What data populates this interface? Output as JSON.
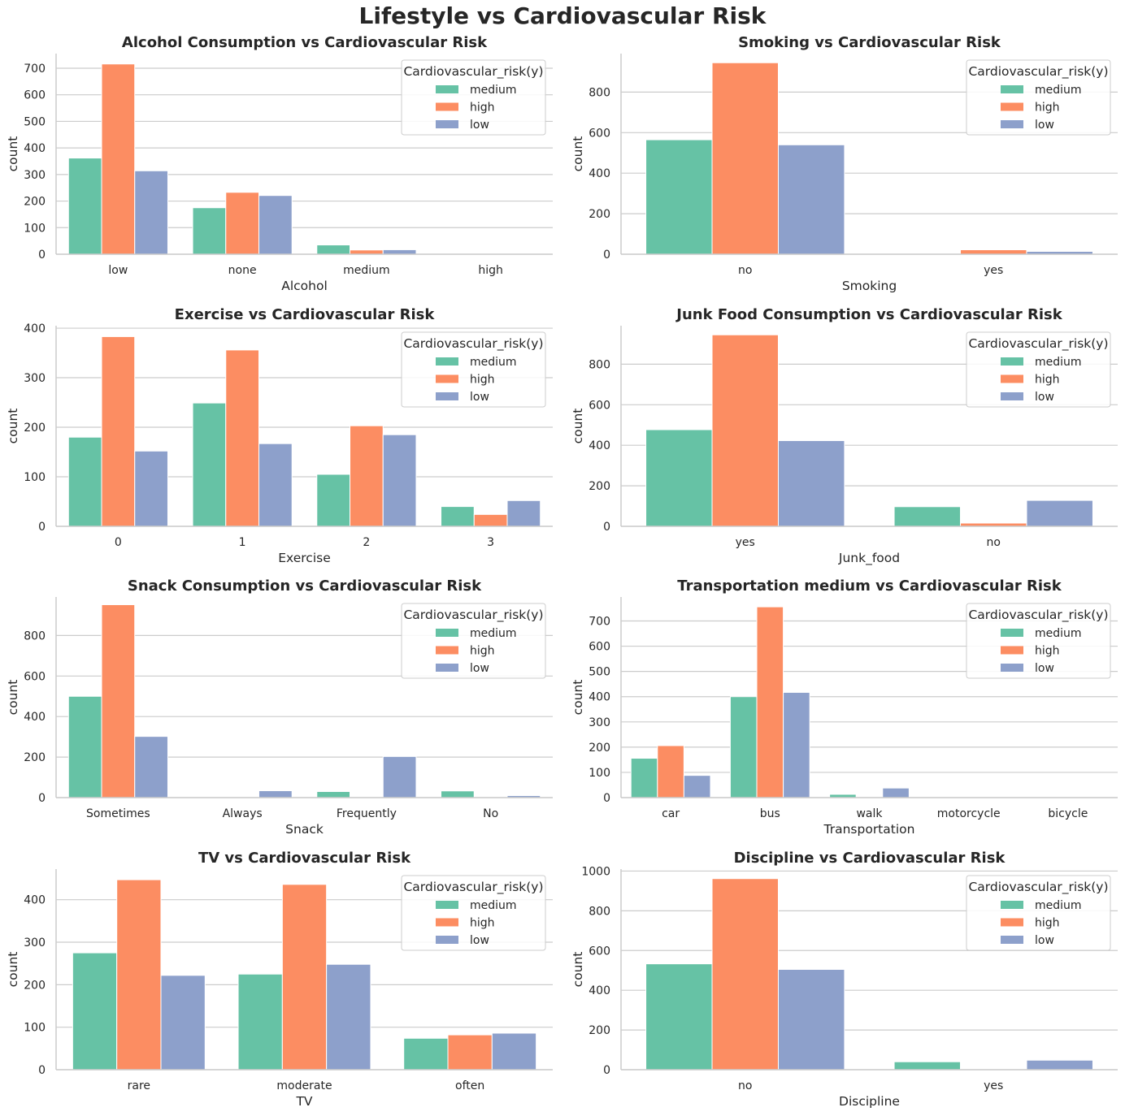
{
  "suptitle": "Lifestyle vs Cardiovascular Risk",
  "colors": {
    "medium": "#66c2a5",
    "high": "#fc8d62",
    "low": "#8da0cb"
  },
  "chart_data": [
    {
      "type": "bar",
      "title": "Alcohol Consumption vs Cardiovascular Risk",
      "xlabel": "Alcohol",
      "ylabel": "count",
      "categories": [
        "low",
        "none",
        "medium",
        "high"
      ],
      "ylim": [
        0,
        755
      ],
      "yticks": [
        0,
        100,
        200,
        300,
        400,
        500,
        600,
        700
      ],
      "legend": {
        "title": "Cardiovascular_risk(y)",
        "placement": "upper right"
      },
      "series": [
        {
          "name": "medium",
          "values": [
            362,
            175,
            35,
            0
          ]
        },
        {
          "name": "high",
          "values": [
            716,
            233,
            16,
            0
          ]
        },
        {
          "name": "low",
          "values": [
            314,
            221,
            17,
            0
          ]
        }
      ]
    },
    {
      "type": "bar",
      "title": "Smoking vs Cardiovascular Risk",
      "xlabel": "Smoking",
      "ylabel": "count",
      "categories": [
        "no",
        "yes"
      ],
      "ylim": [
        0,
        990
      ],
      "yticks": [
        0,
        200,
        400,
        600,
        800
      ],
      "legend": {
        "title": "Cardiovascular_risk(y)",
        "placement": "upper right"
      },
      "series": [
        {
          "name": "medium",
          "values": [
            565,
            0
          ]
        },
        {
          "name": "high",
          "values": [
            945,
            22
          ]
        },
        {
          "name": "low",
          "values": [
            540,
            14
          ]
        }
      ]
    },
    {
      "type": "bar",
      "title": "Exercise vs Cardiovascular Risk",
      "xlabel": "Exercise",
      "ylabel": "count",
      "categories": [
        "0",
        "1",
        "2",
        "3"
      ],
      "ylim": [
        0,
        405
      ],
      "yticks": [
        0,
        100,
        200,
        300,
        400
      ],
      "legend": {
        "title": "Cardiovascular_risk(y)",
        "placement": "upper right"
      },
      "series": [
        {
          "name": "medium",
          "values": [
            180,
            249,
            105,
            40
          ]
        },
        {
          "name": "high",
          "values": [
            383,
            356,
            203,
            24
          ]
        },
        {
          "name": "low",
          "values": [
            152,
            167,
            185,
            52
          ]
        }
      ]
    },
    {
      "type": "bar",
      "title": "Junk Food Consumption vs Cardiovascular Risk",
      "xlabel": "Junk_food",
      "ylabel": "count",
      "categories": [
        "yes",
        "no"
      ],
      "ylim": [
        0,
        990
      ],
      "yticks": [
        0,
        200,
        400,
        600,
        800
      ],
      "legend": {
        "title": "Cardiovascular_risk(y)",
        "placement": "upper right"
      },
      "series": [
        {
          "name": "medium",
          "values": [
            477,
            97
          ]
        },
        {
          "name": "high",
          "values": [
            945,
            16
          ]
        },
        {
          "name": "low",
          "values": [
            423,
            128
          ]
        }
      ]
    },
    {
      "type": "bar",
      "title": "Snack Consumption vs Cardiovascular Risk",
      "xlabel": "Snack",
      "ylabel": "count",
      "categories": [
        "Sometimes",
        "Always",
        "Frequently",
        "No"
      ],
      "ylim": [
        0,
        990
      ],
      "yticks": [
        0,
        200,
        400,
        600,
        800
      ],
      "legend": {
        "title": "Cardiovascular_risk(y)",
        "placement": "upper right"
      },
      "series": [
        {
          "name": "medium",
          "values": [
            500,
            0,
            30,
            33
          ]
        },
        {
          "name": "high",
          "values": [
            952,
            0,
            0,
            0
          ]
        },
        {
          "name": "low",
          "values": [
            302,
            34,
            203,
            10
          ]
        }
      ]
    },
    {
      "type": "bar",
      "title": "Transportation medium vs Cardiovascular Risk",
      "xlabel": "Transportation",
      "ylabel": "count",
      "categories": [
        "car",
        "bus",
        "walk",
        "motorcycle",
        "bicycle"
      ],
      "ylim": [
        0,
        795
      ],
      "yticks": [
        0,
        100,
        200,
        300,
        400,
        500,
        600,
        700
      ],
      "legend": {
        "title": "Cardiovascular_risk(y)",
        "placement": "upper right"
      },
      "series": [
        {
          "name": "medium",
          "values": [
            156,
            400,
            13,
            0,
            0
          ]
        },
        {
          "name": "high",
          "values": [
            206,
            756,
            0,
            0,
            0
          ]
        },
        {
          "name": "low",
          "values": [
            88,
            417,
            38,
            0,
            0
          ]
        }
      ]
    },
    {
      "type": "bar",
      "title": "TV vs Cardiovascular Risk",
      "xlabel": "TV",
      "ylabel": "count",
      "categories": [
        "rare",
        "moderate",
        "often"
      ],
      "ylim": [
        0,
        472
      ],
      "yticks": [
        0,
        100,
        200,
        300,
        400
      ],
      "legend": {
        "title": "Cardiovascular_risk(y)",
        "placement": "upper right"
      },
      "series": [
        {
          "name": "medium",
          "values": [
            275,
            225,
            74
          ]
        },
        {
          "name": "high",
          "values": [
            447,
            436,
            82
          ]
        },
        {
          "name": "low",
          "values": [
            222,
            248,
            86
          ]
        }
      ]
    },
    {
      "type": "bar",
      "title": "Discipline vs Cardiovascular Risk",
      "xlabel": "Discipline",
      "ylabel": "count",
      "categories": [
        "no",
        "yes"
      ],
      "ylim": [
        0,
        1010
      ],
      "yticks": [
        0,
        200,
        400,
        600,
        800,
        1000
      ],
      "legend": {
        "title": "Cardiovascular_risk(y)",
        "placement": "upper right"
      },
      "series": [
        {
          "name": "medium",
          "values": [
            533,
            40
          ]
        },
        {
          "name": "high",
          "values": [
            962,
            0
          ]
        },
        {
          "name": "low",
          "values": [
            505,
            48
          ]
        }
      ]
    }
  ]
}
